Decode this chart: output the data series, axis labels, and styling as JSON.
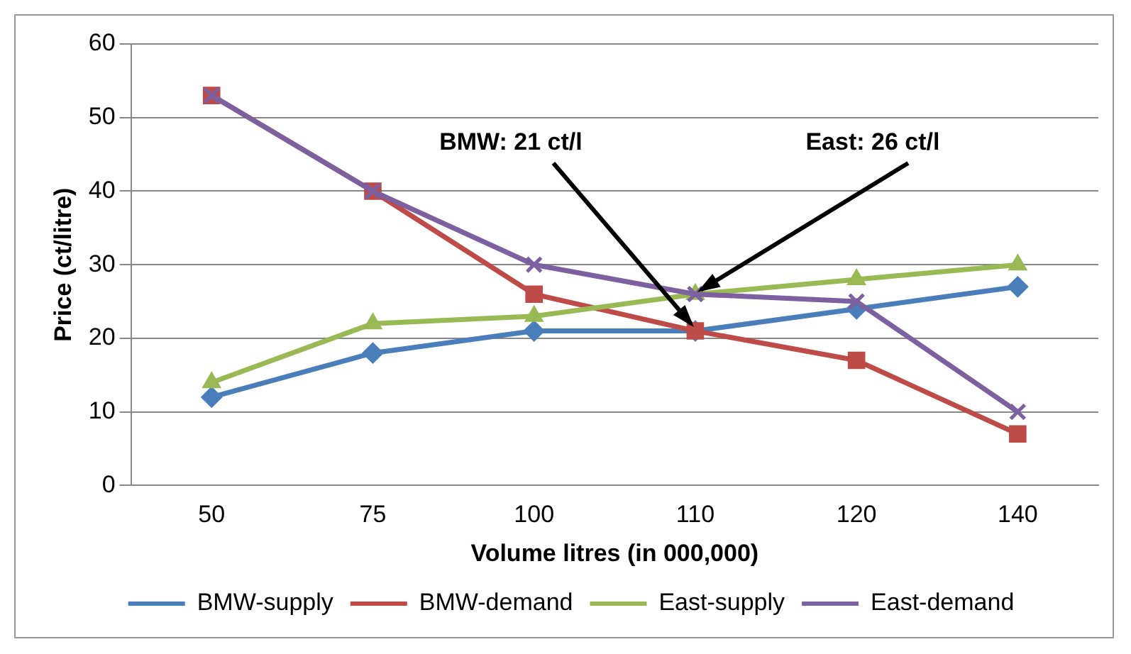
{
  "chart_data": {
    "type": "line",
    "xlabel": "Volume litres (in 000,000)",
    "ylabel": "Price (ct/litre)",
    "categories": [
      "50",
      "75",
      "100",
      "110",
      "120",
      "140"
    ],
    "series": [
      {
        "name": "BMW-supply",
        "color": "#4a7ebb",
        "marker": "diamond",
        "values": [
          12,
          18,
          21,
          21,
          24,
          27
        ]
      },
      {
        "name": "BMW-demand",
        "color": "#be4b48",
        "marker": "square",
        "values": [
          53,
          40,
          26,
          21,
          17,
          7
        ]
      },
      {
        "name": "East-supply",
        "color": "#98b954",
        "marker": "triangle",
        "values": [
          14,
          22,
          23,
          26,
          28,
          30
        ]
      },
      {
        "name": "East-demand",
        "color": "#7d60a0",
        "marker": "cross",
        "values": [
          53,
          40,
          30,
          26,
          25,
          10
        ]
      }
    ],
    "annotations": [
      {
        "text": "BMW: 21 ct/l",
        "x": "110",
        "y": 21
      },
      {
        "text": "East: 26 ct/l",
        "x": "110",
        "y": 26
      }
    ],
    "ylim": [
      0,
      60
    ],
    "yticks": [
      0,
      10,
      20,
      30,
      40,
      50,
      60
    ],
    "grid": "y",
    "legend": "bottom"
  }
}
